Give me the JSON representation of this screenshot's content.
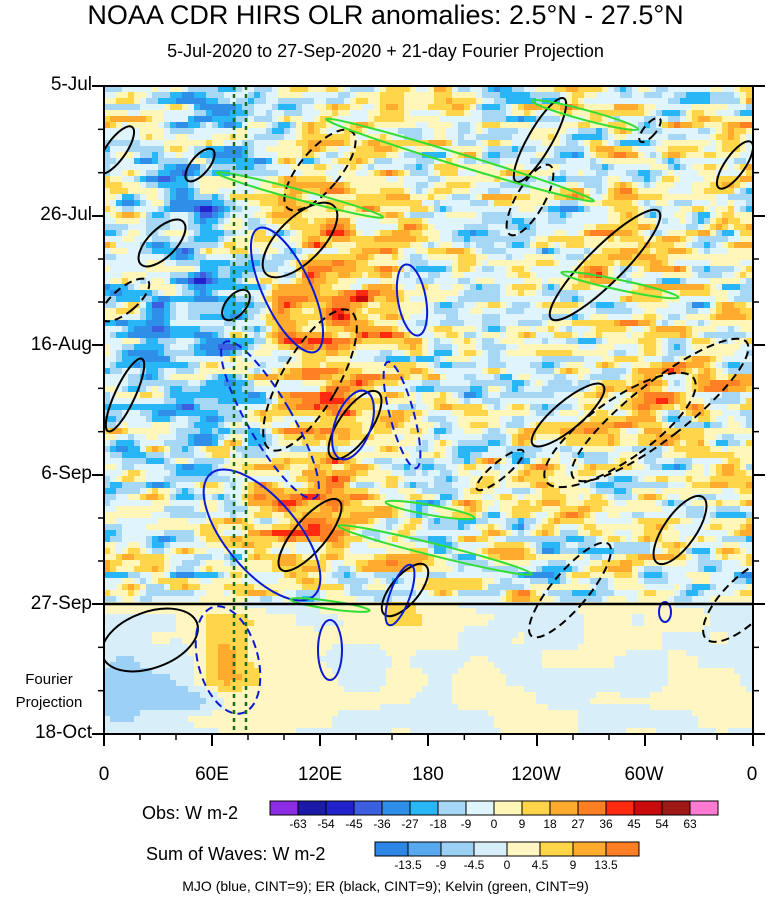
{
  "title": "NOAA CDR HIRS OLR anomalies: 2.5°N - 27.5°N",
  "subtitle": "5-Jul-2020 to 27-Sep-2020 + 21-day Fourier Projection",
  "y_labels": [
    "5-Jul",
    "26-Jul",
    "16-Aug",
    "6-Sep",
    "27-Sep",
    "18-Oct"
  ],
  "x_labels": [
    "0",
    "60E",
    "120E",
    "180",
    "120W",
    "60W",
    "0"
  ],
  "projection_label_line1": "Fourier",
  "projection_label_line2": "Projection",
  "obs_legend": {
    "label": "Obs: W m-2",
    "ticks": [
      "-63",
      "-54",
      "-45",
      "-36",
      "-27",
      "-18",
      "-9",
      "0",
      "9",
      "18",
      "27",
      "36",
      "45",
      "54",
      "63"
    ],
    "colors": [
      "#8b2be2",
      "#1a1aa6",
      "#2222cc",
      "#3b5fe0",
      "#2f8fe8",
      "#29b6f6",
      "#a6d8f5",
      "#dff4fb",
      "#fff6b8",
      "#ffd54a",
      "#ffab2e",
      "#ff7f24",
      "#ff2a10",
      "#c80a0a",
      "#a01818",
      "#ff7ad0"
    ]
  },
  "wave_legend": {
    "label": "Sum of Waves: W m-2",
    "ticks": [
      "-13.5",
      "-9",
      "-4.5",
      "0",
      "4.5",
      "9",
      "13.5"
    ],
    "colors": [
      "#2e86e6",
      "#56a9ef",
      "#9cd0f5",
      "#d8eef9",
      "#fff6c2",
      "#ffd54a",
      "#ffab2e",
      "#ff7f24"
    ]
  },
  "footer": "MJO (blue, CINT=9); ER (black, CINT=9); Kelvin (green, CINT=9)",
  "chart_data": {
    "type": "heatmap",
    "title": "NOAA CDR HIRS OLR anomalies: 2.5°N - 27.5°N",
    "subtitle": "5-Jul-2020 to 27-Sep-2020 + 21-day Fourier Projection",
    "x_axis": {
      "ticks": [
        "0",
        "60E",
        "120E",
        "180",
        "120W",
        "60W",
        "0"
      ],
      "range": [
        "0",
        "0"
      ]
    },
    "y_axis": {
      "ticks": [
        "5-Jul",
        "26-Jul",
        "16-Aug",
        "6-Sep",
        "27-Sep",
        "18-Oct"
      ],
      "range": [
        "5-Jul-2020",
        "18-Oct-2020"
      ],
      "direction": "time increases downward"
    },
    "projection_start": "27-Sep",
    "reference_longitudes_dotted": [
      "70E",
      "80E"
    ],
    "colorbar_obs_levels": [
      -63,
      -54,
      -45,
      -36,
      -27,
      -18,
      -9,
      0,
      9,
      18,
      27,
      36,
      45,
      54,
      63
    ],
    "colorbar_waves_levels": [
      -13.5,
      -9,
      -4.5,
      0,
      4.5,
      9,
      13.5
    ],
    "overlays": [
      {
        "name": "MJO",
        "color": "blue",
        "cint": 9
      },
      {
        "name": "ER",
        "color": "black",
        "cint": 9
      },
      {
        "name": "Kelvin",
        "color": "green",
        "cint": 9
      }
    ]
  }
}
